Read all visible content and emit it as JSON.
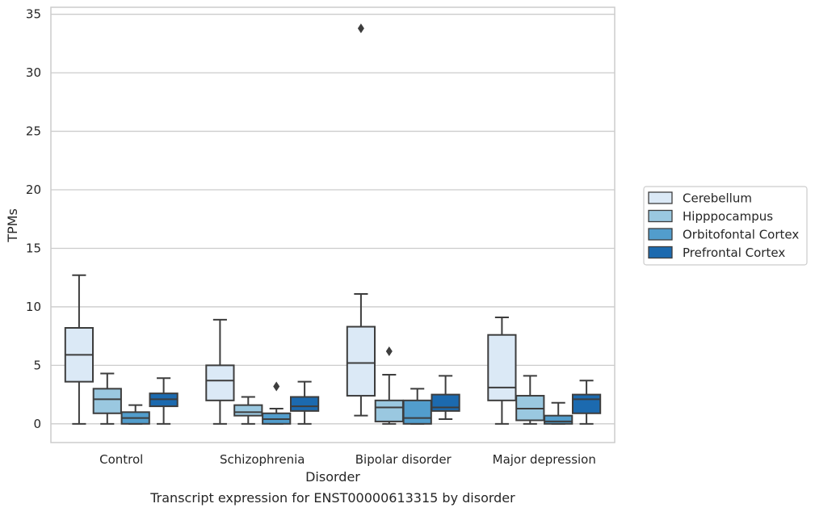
{
  "chart_data": {
    "type": "box",
    "xlabel": "Disorder",
    "ylabel": "TPMs",
    "caption": "Transcript expression for ENST00000613315 by disorder",
    "ylim": [
      -1.6,
      35.6
    ],
    "yticks": [
      0,
      5,
      10,
      15,
      20,
      25,
      30,
      35
    ],
    "grid": "horizontal",
    "legend_position": "right",
    "categories": [
      "Control",
      "Schizophrenia",
      "Bipolar disorder",
      "Major depression"
    ],
    "series": [
      {
        "name": "Cerebellum",
        "color": "#dbe9f6",
        "boxes": [
          {
            "min": 0,
            "q1": 3.6,
            "median": 5.9,
            "q3": 8.2,
            "max": 12.7,
            "outliers": []
          },
          {
            "min": 0,
            "q1": 2.0,
            "median": 3.7,
            "q3": 5.0,
            "max": 8.9,
            "outliers": []
          },
          {
            "min": 0.7,
            "q1": 2.4,
            "median": 5.2,
            "q3": 8.3,
            "max": 11.1,
            "outliers": [
              33.8
            ]
          },
          {
            "min": 0,
            "q1": 2.0,
            "median": 3.1,
            "q3": 7.6,
            "max": 9.1,
            "outliers": []
          }
        ]
      },
      {
        "name": "Hipppocampus",
        "color": "#9ac8e0",
        "boxes": [
          {
            "min": 0,
            "q1": 0.9,
            "median": 2.1,
            "q3": 3.0,
            "max": 4.3,
            "outliers": []
          },
          {
            "min": 0,
            "q1": 0.7,
            "median": 1.0,
            "q3": 1.6,
            "max": 2.3,
            "outliers": []
          },
          {
            "min": 0,
            "q1": 0.2,
            "median": 1.4,
            "q3": 2.0,
            "max": 4.2,
            "outliers": [
              6.2
            ]
          },
          {
            "min": 0,
            "q1": 0.3,
            "median": 1.3,
            "q3": 2.4,
            "max": 4.1,
            "outliers": []
          }
        ]
      },
      {
        "name": "Orbitofontal Cortex",
        "color": "#529dcc",
        "boxes": [
          {
            "min": 0,
            "q1": 0,
            "median": 0.5,
            "q3": 1.0,
            "max": 1.6,
            "outliers": []
          },
          {
            "min": 0,
            "q1": 0,
            "median": 0.4,
            "q3": 0.9,
            "max": 1.3,
            "outliers": [
              3.2
            ]
          },
          {
            "min": 0,
            "q1": 0,
            "median": 0.5,
            "q3": 2.0,
            "max": 3.0,
            "outliers": []
          },
          {
            "min": 0,
            "q1": 0,
            "median": 0.2,
            "q3": 0.7,
            "max": 1.8,
            "outliers": []
          }
        ]
      },
      {
        "name": "Prefrontal Cortex",
        "color": "#1c6aaf",
        "boxes": [
          {
            "min": 0,
            "q1": 1.5,
            "median": 2.1,
            "q3": 2.6,
            "max": 3.9,
            "outliers": []
          },
          {
            "min": 0,
            "q1": 1.1,
            "median": 1.5,
            "q3": 2.3,
            "max": 3.6,
            "outliers": []
          },
          {
            "min": 0.4,
            "q1": 1.1,
            "median": 1.4,
            "q3": 2.5,
            "max": 4.1,
            "outliers": []
          },
          {
            "min": 0,
            "q1": 0.9,
            "median": 2.1,
            "q3": 2.5,
            "max": 3.7,
            "outliers": []
          }
        ]
      }
    ]
  }
}
